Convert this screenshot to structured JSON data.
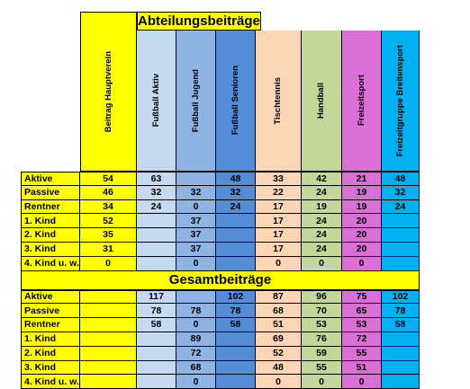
{
  "sections": {
    "abteilung_title": "Abteilungsbeiträge",
    "gesamt_title": "Gesamtbeiträge"
  },
  "columns": [
    {
      "label": "Beitrag Hauptverein",
      "color": "#FFFF00"
    },
    {
      "label": "Fußball Aktiv",
      "color": "#C5D9F1"
    },
    {
      "label": "Fußball Jugend",
      "color": "#8DB4E2"
    },
    {
      "label": "Fußball Senioren",
      "color": "#538DD5"
    },
    {
      "label": "Tischtennis",
      "color": "#FCD5B4"
    },
    {
      "label": "Handball",
      "color": "#C4D79B"
    },
    {
      "label": "Freizeitsport",
      "color": "#DA70D6"
    },
    {
      "label": "Freizeitgruppe Breitensport",
      "color": "#00B0F0"
    }
  ],
  "colors": {
    "header_bg": "#FFFF00",
    "label_bg": "#FFFF00",
    "grid": "#000000"
  },
  "abteilung_rows": [
    {
      "label": "Aktive",
      "values": [
        "54",
        "63",
        "",
        "48",
        "33",
        "42",
        "21",
        "48"
      ]
    },
    {
      "label": "Passive",
      "values": [
        "46",
        "32",
        "32",
        "32",
        "22",
        "24",
        "19",
        "32"
      ]
    },
    {
      "label": "Rentner",
      "values": [
        "34",
        "24",
        "0",
        "24",
        "17",
        "19",
        "19",
        "24"
      ]
    },
    {
      "label": "1. Kind",
      "values": [
        "52",
        "",
        "37",
        "",
        "17",
        "24",
        "20",
        ""
      ]
    },
    {
      "label": "2. Kind",
      "values": [
        "35",
        "",
        "37",
        "",
        "17",
        "24",
        "20",
        ""
      ]
    },
    {
      "label": "3. Kind",
      "values": [
        "31",
        "",
        "37",
        "",
        "17",
        "24",
        "20",
        ""
      ]
    },
    {
      "label": "4. Kind u. w.",
      "values": [
        "0",
        "",
        "0",
        "",
        "0",
        "0",
        "0",
        ""
      ]
    }
  ],
  "gesamt_rows": [
    {
      "label": "Aktive",
      "values": [
        "",
        "117",
        "",
        "102",
        "87",
        "96",
        "75",
        "102"
      ]
    },
    {
      "label": "Passive",
      "values": [
        "",
        "78",
        "78",
        "78",
        "68",
        "70",
        "65",
        "78"
      ]
    },
    {
      "label": "Rentner",
      "values": [
        "",
        "58",
        "0",
        "58",
        "51",
        "53",
        "53",
        "58"
      ]
    },
    {
      "label": "1. Kind",
      "values": [
        "",
        "",
        "89",
        "",
        "69",
        "76",
        "72",
        ""
      ]
    },
    {
      "label": "2. Kind",
      "values": [
        "",
        "",
        "72",
        "",
        "52",
        "59",
        "55",
        ""
      ]
    },
    {
      "label": "3. Kind",
      "values": [
        "",
        "",
        "68",
        "",
        "48",
        "55",
        "51",
        ""
      ]
    },
    {
      "label": "4. Kind u. w.",
      "values": [
        "",
        "",
        "0",
        "",
        "0",
        "0",
        "0",
        ""
      ]
    }
  ]
}
